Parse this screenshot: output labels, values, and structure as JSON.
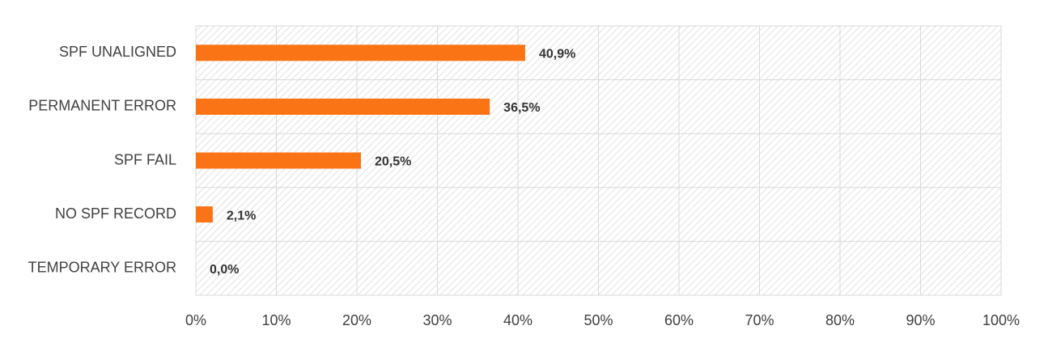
{
  "chart_data": {
    "type": "bar",
    "categories": [
      "SPF UNALIGNED",
      "PERMANENT ERROR",
      "SPF FAIL",
      "NO SPF RECORD",
      "TEMPORARY ERROR"
    ],
    "values": [
      40.9,
      36.5,
      20.5,
      2.1,
      0.0
    ],
    "value_labels": [
      "40,9%",
      "36,5%",
      "20,5%",
      "2,1%",
      "0,0%"
    ],
    "color": "#fa7314",
    "xlim": [
      0,
      100
    ],
    "xticks": [
      {
        "value": 0,
        "label": "0%"
      },
      {
        "value": 10,
        "label": "10%"
      },
      {
        "value": 20,
        "label": "20%"
      },
      {
        "value": 30,
        "label": "30%"
      },
      {
        "value": 40,
        "label": "40%"
      },
      {
        "value": 50,
        "label": "50%"
      },
      {
        "value": 60,
        "label": "60%"
      },
      {
        "value": 70,
        "label": "70%"
      },
      {
        "value": 80,
        "label": "80%"
      },
      {
        "value": 90,
        "label": "90%"
      },
      {
        "value": 100,
        "label": "100%"
      }
    ],
    "grid": true
  }
}
